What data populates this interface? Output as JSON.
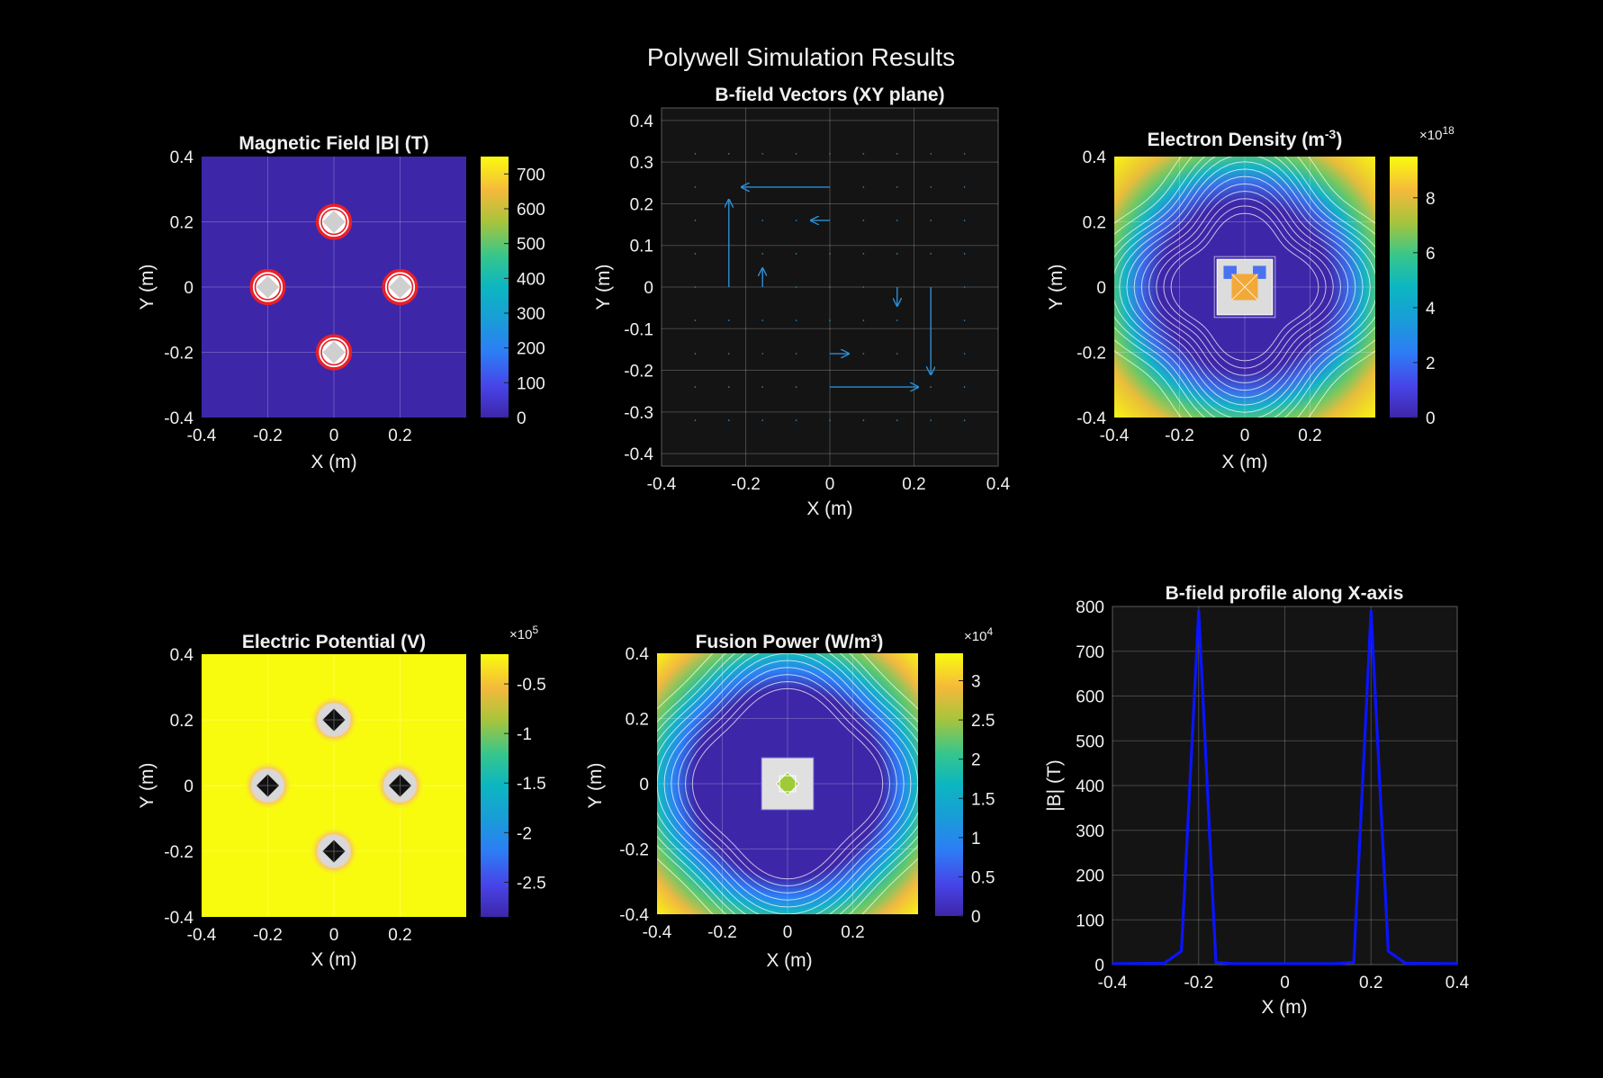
{
  "figure": {
    "title": "Polywell Simulation Results"
  },
  "chart_data": [
    {
      "id": "bfield",
      "type": "heatmap",
      "title": "Magnetic Field |B| (T)",
      "xlabel": "X (m)",
      "ylabel": "Y (m)",
      "xlim": [
        -0.4,
        0.4
      ],
      "ylim": [
        -0.4,
        0.4
      ],
      "xticks": [
        {
          "v": -0.4,
          "l": "-0.4"
        },
        {
          "v": -0.2,
          "l": "-0.2"
        },
        {
          "v": 0,
          "l": "0"
        },
        {
          "v": 0.2,
          "l": "0.2"
        }
      ],
      "yticks": [
        {
          "v": -0.4,
          "l": "-0.4"
        },
        {
          "v": -0.2,
          "l": "-0.2"
        },
        {
          "v": 0,
          "l": "0"
        },
        {
          "v": 0.2,
          "l": "0.2"
        },
        {
          "v": 0.4,
          "l": "0.4"
        }
      ],
      "grid": true,
      "colorbar": {
        "min": 0,
        "max": 750,
        "ticks": [
          {
            "v": 0,
            "l": "0"
          },
          {
            "v": 100,
            "l": "100"
          },
          {
            "v": 200,
            "l": "200"
          },
          {
            "v": 300,
            "l": "300"
          },
          {
            "v": 400,
            "l": "400"
          },
          {
            "v": 500,
            "l": "500"
          },
          {
            "v": 600,
            "l": "600"
          },
          {
            "v": 700,
            "l": "700"
          }
        ]
      },
      "background_value": 0,
      "coils": [
        {
          "x": 0,
          "y": 0.2
        },
        {
          "x": -0.2,
          "y": 0
        },
        {
          "x": 0.2,
          "y": 0
        },
        {
          "x": 0,
          "y": -0.2
        }
      ],
      "coil_color": "#e8202a"
    },
    {
      "id": "vectors",
      "type": "quiver",
      "title": "B-field Vectors (XY plane)",
      "xlabel": "X (m)",
      "ylabel": "Y (m)",
      "xlim": [
        -0.4,
        0.4
      ],
      "ylim": [
        -0.43,
        0.43
      ],
      "xticks": [
        {
          "v": -0.4,
          "l": "-0.4"
        },
        {
          "v": -0.2,
          "l": "-0.2"
        },
        {
          "v": 0,
          "l": "0"
        },
        {
          "v": 0.2,
          "l": "0.2"
        },
        {
          "v": 0.4,
          "l": "0.4"
        }
      ],
      "yticks": [
        {
          "v": -0.4,
          "l": "-0.4"
        },
        {
          "v": -0.3,
          "l": "-0.3"
        },
        {
          "v": -0.2,
          "l": "-0.2"
        },
        {
          "v": -0.1,
          "l": "-0.1"
        },
        {
          "v": 0,
          "l": "0"
        },
        {
          "v": 0.1,
          "l": "0.1"
        },
        {
          "v": 0.2,
          "l": "0.2"
        },
        {
          "v": 0.3,
          "l": "0.3"
        },
        {
          "v": 0.4,
          "l": "0.4"
        }
      ],
      "grid": true,
      "arrow_color": "#2a8fd6",
      "arrows": [
        {
          "x": 0,
          "y": 0.24,
          "u": -0.21,
          "v": 0
        },
        {
          "x": -0.24,
          "y": 0,
          "u": 0,
          "v": 0.21
        },
        {
          "x": 0.24,
          "y": 0,
          "u": 0,
          "v": -0.21
        },
        {
          "x": 0,
          "y": -0.24,
          "u": 0.21,
          "v": 0
        },
        {
          "x": 0,
          "y": 0.16,
          "u": -0.045,
          "v": 0
        },
        {
          "x": -0.16,
          "y": 0,
          "u": 0,
          "v": 0.045
        },
        {
          "x": 0.16,
          "y": 0,
          "u": 0,
          "v": -0.045
        },
        {
          "x": 0,
          "y": -0.16,
          "u": 0.045,
          "v": 0
        }
      ],
      "dots": [
        {
          "x": -0.32,
          "y": 0.32
        },
        {
          "x": -0.24,
          "y": 0.32
        },
        {
          "x": -0.16,
          "y": 0.32
        },
        {
          "x": -0.08,
          "y": 0.32
        },
        {
          "x": 0,
          "y": 0.32
        },
        {
          "x": 0.08,
          "y": 0.32
        },
        {
          "x": 0.16,
          "y": 0.32
        },
        {
          "x": 0.24,
          "y": 0.32
        },
        {
          "x": 0.32,
          "y": 0.32
        },
        {
          "x": -0.32,
          "y": 0.24
        },
        {
          "x": 0.08,
          "y": 0.24
        },
        {
          "x": 0.16,
          "y": 0.24
        },
        {
          "x": 0.24,
          "y": 0.24
        },
        {
          "x": 0.32,
          "y": 0.24
        },
        {
          "x": -0.32,
          "y": 0.16
        },
        {
          "x": -0.16,
          "y": 0.16
        },
        {
          "x": -0.08,
          "y": 0.16
        },
        {
          "x": 0.08,
          "y": 0.16
        },
        {
          "x": 0.16,
          "y": 0.16
        },
        {
          "x": 0.24,
          "y": 0.16
        },
        {
          "x": 0.32,
          "y": 0.16
        },
        {
          "x": -0.32,
          "y": 0.08
        },
        {
          "x": -0.16,
          "y": 0.08
        },
        {
          "x": -0.08,
          "y": 0.08
        },
        {
          "x": 0,
          "y": 0.08
        },
        {
          "x": 0.08,
          "y": 0.08
        },
        {
          "x": 0.16,
          "y": 0.08
        },
        {
          "x": 0.24,
          "y": 0.08
        },
        {
          "x": 0.32,
          "y": 0.08
        },
        {
          "x": -0.32,
          "y": 0
        },
        {
          "x": -0.08,
          "y": 0
        },
        {
          "x": 0,
          "y": 0
        },
        {
          "x": 0.08,
          "y": 0
        },
        {
          "x": 0.32,
          "y": 0
        },
        {
          "x": -0.32,
          "y": -0.08
        },
        {
          "x": -0.24,
          "y": -0.08
        },
        {
          "x": -0.16,
          "y": -0.08
        },
        {
          "x": -0.08,
          "y": -0.08
        },
        {
          "x": 0,
          "y": -0.08
        },
        {
          "x": 0.08,
          "y": -0.08
        },
        {
          "x": 0.16,
          "y": -0.08
        },
        {
          "x": 0.32,
          "y": -0.08
        },
        {
          "x": -0.32,
          "y": -0.16
        },
        {
          "x": -0.24,
          "y": -0.16
        },
        {
          "x": -0.16,
          "y": -0.16
        },
        {
          "x": -0.08,
          "y": -0.16
        },
        {
          "x": 0.08,
          "y": -0.16
        },
        {
          "x": 0.16,
          "y": -0.16
        },
        {
          "x": 0.32,
          "y": -0.16
        },
        {
          "x": -0.32,
          "y": -0.24
        },
        {
          "x": -0.24,
          "y": -0.24
        },
        {
          "x": -0.16,
          "y": -0.24
        },
        {
          "x": -0.08,
          "y": -0.24
        },
        {
          "x": 0.24,
          "y": -0.24
        },
        {
          "x": 0.32,
          "y": -0.24
        },
        {
          "x": -0.32,
          "y": -0.32
        },
        {
          "x": -0.24,
          "y": -0.32
        },
        {
          "x": -0.16,
          "y": -0.32
        },
        {
          "x": -0.08,
          "y": -0.32
        },
        {
          "x": 0,
          "y": -0.32
        },
        {
          "x": 0.08,
          "y": -0.32
        },
        {
          "x": 0.16,
          "y": -0.32
        },
        {
          "x": 0.24,
          "y": -0.32
        },
        {
          "x": 0.32,
          "y": -0.32
        }
      ]
    },
    {
      "id": "density",
      "type": "heatmap",
      "title_main": "Electron  Density  (m",
      "title_sup": "-3",
      "title_end": ")",
      "xlabel": "X (m)",
      "ylabel": "Y (m)",
      "xlim": [
        -0.4,
        0.4
      ],
      "ylim": [
        -0.4,
        0.4
      ],
      "xticks": [
        {
          "v": -0.4,
          "l": "-0.4"
        },
        {
          "v": -0.2,
          "l": "-0.2"
        },
        {
          "v": 0,
          "l": "0"
        },
        {
          "v": 0.2,
          "l": "0.2"
        }
      ],
      "yticks": [
        {
          "v": -0.4,
          "l": "-0.4"
        },
        {
          "v": -0.2,
          "l": "-0.2"
        },
        {
          "v": 0,
          "l": "0"
        },
        {
          "v": 0.2,
          "l": "0.2"
        },
        {
          "v": 0.4,
          "l": "0.4"
        }
      ],
      "grid": true,
      "colorbar": {
        "min": 0,
        "max": 9.5,
        "exp_base": "×10",
        "exp_power": "18",
        "ticks": [
          {
            "v": 0,
            "l": "0"
          },
          {
            "v": 2,
            "l": "2"
          },
          {
            "v": 4,
            "l": "4"
          },
          {
            "v": 6,
            "l": "6"
          },
          {
            "v": 8,
            "l": "8"
          }
        ]
      },
      "center_value": 7.5
    },
    {
      "id": "potential",
      "type": "heatmap",
      "title": "Electric Potential (V)",
      "xlabel": "X (m)",
      "ylabel": "Y (m)",
      "xlim": [
        -0.4,
        0.4
      ],
      "ylim": [
        -0.4,
        0.4
      ],
      "xticks": [
        {
          "v": -0.4,
          "l": "-0.4"
        },
        {
          "v": -0.2,
          "l": "-0.2"
        },
        {
          "v": 0,
          "l": "0"
        },
        {
          "v": 0.2,
          "l": "0.2"
        }
      ],
      "yticks": [
        {
          "v": -0.4,
          "l": "-0.4"
        },
        {
          "v": -0.2,
          "l": "-0.2"
        },
        {
          "v": 0,
          "l": "0"
        },
        {
          "v": 0.2,
          "l": "0.2"
        },
        {
          "v": 0.4,
          "l": "0.4"
        }
      ],
      "grid": true,
      "colorbar": {
        "min": -2.85,
        "max": -0.2,
        "exp_base": "×10",
        "exp_power": "5",
        "ticks": [
          {
            "v": -2.5,
            "l": "-2.5"
          },
          {
            "v": -2,
            "l": "-2"
          },
          {
            "v": -1.5,
            "l": "-1.5"
          },
          {
            "v": -1,
            "l": "-1"
          },
          {
            "v": -0.5,
            "l": "-0.5"
          }
        ]
      },
      "coils": [
        {
          "x": 0,
          "y": 0.2
        },
        {
          "x": -0.2,
          "y": 0
        },
        {
          "x": 0.2,
          "y": 0
        },
        {
          "x": 0,
          "y": -0.2
        }
      ]
    },
    {
      "id": "fusion",
      "type": "heatmap",
      "title": "Fusion Power (W/m³)",
      "xlabel": "X (m)",
      "ylabel": "Y (m)",
      "xlim": [
        -0.4,
        0.4
      ],
      "ylim": [
        -0.4,
        0.4
      ],
      "xticks": [
        {
          "v": -0.4,
          "l": "-0.4"
        },
        {
          "v": -0.2,
          "l": "-0.2"
        },
        {
          "v": 0,
          "l": "0"
        },
        {
          "v": 0.2,
          "l": "0.2"
        }
      ],
      "yticks": [
        {
          "v": -0.4,
          "l": "-0.4"
        },
        {
          "v": -0.2,
          "l": "-0.2"
        },
        {
          "v": 0,
          "l": "0"
        },
        {
          "v": 0.2,
          "l": "0.2"
        },
        {
          "v": 0.4,
          "l": "0.4"
        }
      ],
      "grid": true,
      "colorbar": {
        "min": 0,
        "max": 3.35,
        "exp_base": "×10",
        "exp_power": "4",
        "ticks": [
          {
            "v": 0,
            "l": "0"
          },
          {
            "v": 0.5,
            "l": "0.5"
          },
          {
            "v": 1,
            "l": "1"
          },
          {
            "v": 1.5,
            "l": "1.5"
          },
          {
            "v": 2,
            "l": "2"
          },
          {
            "v": 2.5,
            "l": "2.5"
          },
          {
            "v": 3,
            "l": "3"
          }
        ]
      },
      "center_value": 1.8
    },
    {
      "id": "profile",
      "type": "line",
      "title": "B-field profile along X-axis",
      "xlabel": "X (m)",
      "ylabel": "|B| (T)",
      "xlim": [
        -0.4,
        0.4
      ],
      "ylim": [
        0,
        800
      ],
      "xticks": [
        {
          "v": -0.4,
          "l": "-0.4"
        },
        {
          "v": -0.2,
          "l": "-0.2"
        },
        {
          "v": 0,
          "l": "0"
        },
        {
          "v": 0.2,
          "l": "0.2"
        },
        {
          "v": 0.4,
          "l": "0.4"
        }
      ],
      "yticks": [
        {
          "v": 0,
          "l": "0"
        },
        {
          "v": 100,
          "l": "100"
        },
        {
          "v": 200,
          "l": "200"
        },
        {
          "v": 300,
          "l": "300"
        },
        {
          "v": 400,
          "l": "400"
        },
        {
          "v": 500,
          "l": "500"
        },
        {
          "v": 600,
          "l": "600"
        },
        {
          "v": 700,
          "l": "700"
        },
        {
          "v": 800,
          "l": "800"
        }
      ],
      "grid": true,
      "line_color": "#0a14ff",
      "x": [
        -0.4,
        -0.28,
        -0.24,
        -0.2,
        -0.16,
        -0.12,
        -0.08,
        0,
        0.08,
        0.12,
        0.16,
        0.2,
        0.24,
        0.28,
        0.4
      ],
      "y": [
        2,
        3,
        30,
        790,
        5,
        2,
        2,
        2,
        2,
        2,
        5,
        790,
        30,
        3,
        2
      ]
    }
  ]
}
